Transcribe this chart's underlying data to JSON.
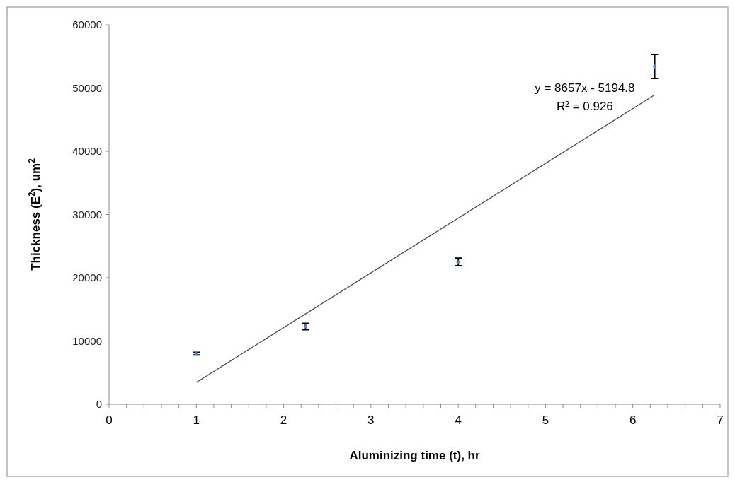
{
  "chart_data": {
    "type": "scatter",
    "xlabel": "Aluminizing time (t), hr",
    "ylabel": "Thickness (E$^{2}$), um$^{2}$",
    "xlim": [
      0,
      7
    ],
    "ylim": [
      0,
      60000
    ],
    "xticks": [
      0,
      {
        "value": 0.2,
        "label": null
      },
      {
        "value": 0.4,
        "label": null
      },
      {
        "value": 0.6,
        "label": null
      },
      {
        "value": 0.8,
        "label": null
      },
      1,
      {
        "value": 1.2,
        "label": null
      },
      {
        "value": 1.4,
        "label": null
      },
      {
        "value": 1.6,
        "label": null
      },
      {
        "value": 1.8,
        "label": null
      },
      2,
      {
        "value": 2.2,
        "label": null
      },
      {
        "value": 2.4,
        "label": null
      },
      {
        "value": 2.6,
        "label": null
      },
      {
        "value": 2.8,
        "label": null
      },
      3,
      {
        "value": 3.2,
        "label": null
      },
      {
        "value": 3.4,
        "label": null
      },
      {
        "value": 3.6,
        "label": null
      },
      {
        "value": 3.8,
        "label": null
      },
      4,
      {
        "value": 4.2,
        "label": null
      },
      {
        "value": 4.4,
        "label": null
      },
      {
        "value": 4.6,
        "label": null
      },
      {
        "value": 4.8,
        "label": null
      },
      5,
      {
        "value": 5.2,
        "label": null
      },
      {
        "value": 5.4,
        "label": null
      },
      {
        "value": 5.6,
        "label": null
      },
      {
        "value": 5.8,
        "label": null
      },
      6,
      {
        "value": 6.2,
        "label": null
      },
      {
        "value": 6.4,
        "label": null
      },
      {
        "value": 6.6,
        "label": null
      },
      {
        "value": 6.8,
        "label": null
      },
      7
    ],
    "yticks": [
      0,
      10000,
      20000,
      30000,
      40000,
      50000,
      60000
    ],
    "grid": false,
    "marker": "diamond",
    "series": [
      {
        "color": "#4f81bd",
        "x": [
          1,
          2.25,
          4,
          6.25
        ],
        "values": [
          8000,
          12300,
          22500,
          53400
        ],
        "errors": [
          200,
          500,
          600,
          1900
        ]
      },
      {
        "type": "line",
        "color": "#404040",
        "x": [
          1,
          6.25
        ],
        "values": [
          3460,
          48900
        ],
        "line_style": "solid",
        "marker": "none"
      }
    ],
    "annotations": [
      "y = 8657x - 5194.8",
      "R² = 0.926"
    ]
  }
}
